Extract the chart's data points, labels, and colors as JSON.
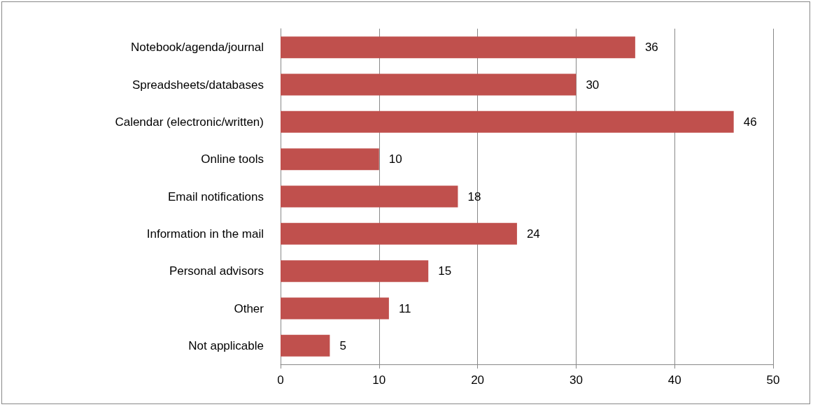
{
  "chart_data": {
    "type": "bar",
    "orientation": "horizontal",
    "categories": [
      "Notebook/agenda/journal",
      "Spreadsheets/databases",
      "Calendar (electronic/written)",
      "Online tools",
      "Email notifications",
      "Information in the mail",
      "Personal advisors",
      "Other",
      "Not applicable"
    ],
    "values": [
      36,
      30,
      46,
      10,
      18,
      24,
      15,
      11,
      5
    ],
    "color": "#c0504d",
    "xlim": [
      0,
      50
    ],
    "xticks": [
      0,
      10,
      20,
      30,
      40,
      50
    ],
    "grid": "x",
    "data_labels": true
  }
}
